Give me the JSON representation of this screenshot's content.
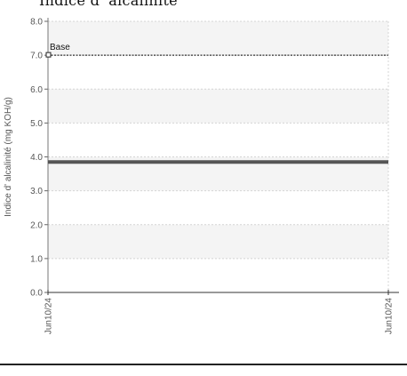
{
  "chart_data": {
    "type": "line",
    "title": "Indice d' alcalinité",
    "xlabel": "",
    "ylabel": "Indice d' alcalinité (mg KOH/g)",
    "ylim": [
      0,
      8
    ],
    "yticks": [
      "0.0",
      "1.0",
      "2.0",
      "3.0",
      "4.0",
      "5.0",
      "6.0",
      "7.0",
      "8.0"
    ],
    "xticks": [
      "Jun10/24",
      "Jun10/24"
    ],
    "grid": true,
    "series": [
      {
        "values": [
          3.85,
          3.85
        ],
        "color": "#555555"
      }
    ],
    "reference_lines": [
      {
        "label": "Base",
        "value": 7.0,
        "color": "#333333"
      }
    ]
  }
}
